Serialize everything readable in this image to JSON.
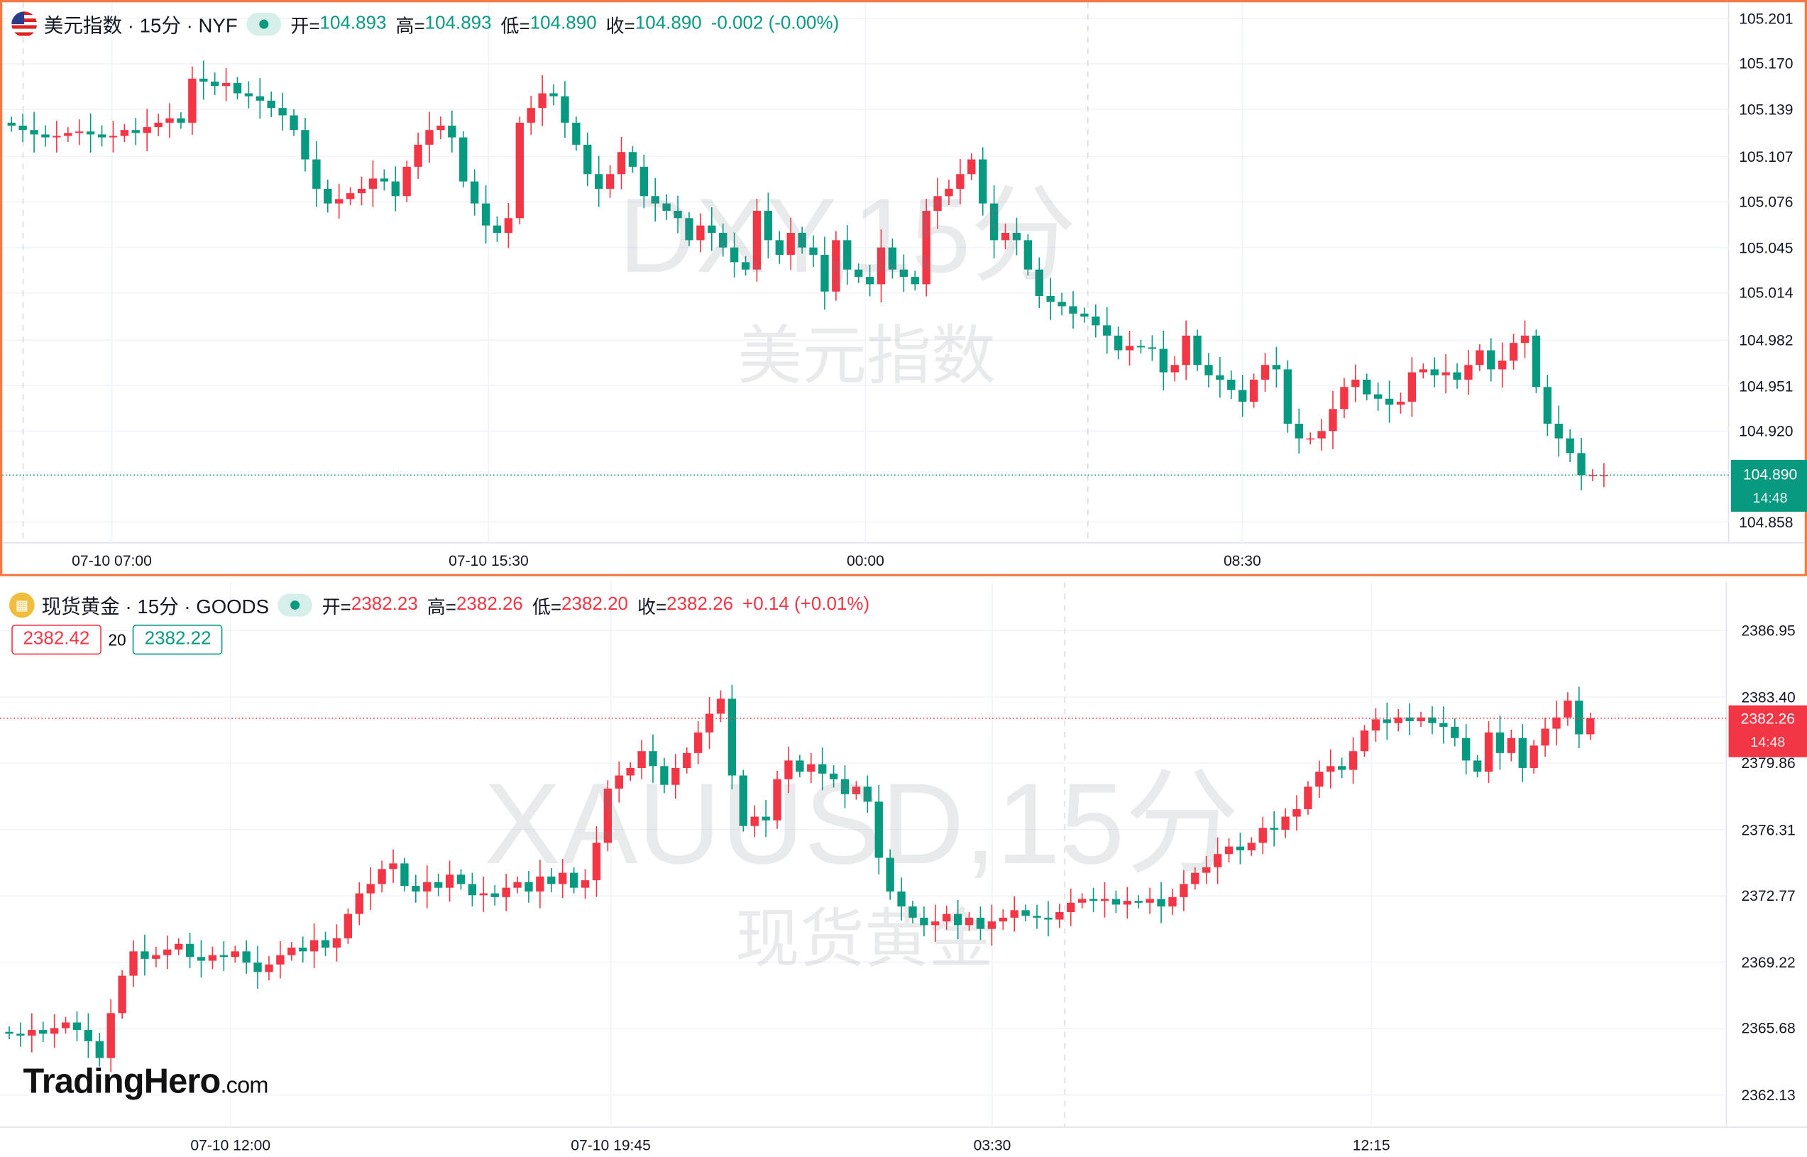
{
  "colors": {
    "up": "#f23645",
    "down": "#089981",
    "grid": "#f0f3fa",
    "accent": "#f47a45"
  },
  "top": {
    "icon": "us-flag-icon",
    "name": "美元指数 · 15分 · NYF",
    "o_label": "开=",
    "o": "104.893",
    "h_label": "高=",
    "h": "104.893",
    "l_label": "低=",
    "l": "104.890",
    "c_label": "收=",
    "c": "104.890",
    "change": "-0.002 (-0.00%)",
    "watermark": "DXY,15分",
    "watermark_sub": "美元指数",
    "current_price": "104.890",
    "countdown": "14:48"
  },
  "bottom": {
    "icon": "gold-icon",
    "name": "现货黄金 · 15分 · GOODS",
    "o_label": "开=",
    "o": "2382.23",
    "h_label": "高=",
    "h": "2382.26",
    "l_label": "低=",
    "l": "2382.20",
    "c_label": "收=",
    "c": "2382.26",
    "change": "+0.14 (+0.01%)",
    "bid": "2382.42",
    "spread": "20",
    "ask": "2382.22",
    "watermark": "XAUUSD,15分",
    "watermark_sub": "现货黄金",
    "current_price": "2382.26",
    "countdown": "14:48"
  },
  "logo": {
    "text": "TradingHero",
    ".com": ".com"
  },
  "chart_data": [
    {
      "type": "candlestick",
      "title": "美元指数 · 15分 · NYF",
      "y_ticks": [
        "105.201",
        "105.170",
        "105.139",
        "105.107",
        "105.076",
        "105.045",
        "105.014",
        "104.982",
        "104.951",
        "104.920",
        "104.858"
      ],
      "x_ticks": [
        "07-10 07:00",
        "07-10 15:30",
        "00:00",
        "08:30"
      ],
      "ylim": [
        104.858,
        105.201
      ],
      "grid": true,
      "closes": [
        105.128,
        105.125,
        105.122,
        105.12,
        105.121,
        105.123,
        105.124,
        105.122,
        105.12,
        105.121,
        105.125,
        105.123,
        105.127,
        105.13,
        105.133,
        105.13,
        105.16,
        105.158,
        105.155,
        105.157,
        105.15,
        105.148,
        105.145,
        105.14,
        105.135,
        105.125,
        105.105,
        105.085,
        105.075,
        105.078,
        105.082,
        105.085,
        105.092,
        105.09,
        105.08,
        105.1,
        105.115,
        105.125,
        105.128,
        105.12,
        105.09,
        105.075,
        105.06,
        105.055,
        105.065,
        105.13,
        105.14,
        105.15,
        105.148,
        105.13,
        105.115,
        105.095,
        105.085,
        105.095,
        105.11,
        105.1,
        105.08,
        105.075,
        105.07,
        105.065,
        105.05,
        105.06,
        105.055,
        105.045,
        105.035,
        105.03,
        105.07,
        105.05,
        105.04,
        105.055,
        105.045,
        105.04,
        105.015,
        105.05,
        105.03,
        105.025,
        105.02,
        105.045,
        105.03,
        105.025,
        105.02,
        105.07,
        105.08,
        105.085,
        105.095,
        105.105,
        105.075,
        105.05,
        105.055,
        105.05,
        105.03,
        105.012,
        105.008,
        105.005,
        105.0,
        104.998,
        104.992,
        104.985,
        104.975,
        104.978,
        104.977,
        104.976,
        104.96,
        104.965,
        104.985,
        104.965,
        104.958,
        104.955,
        104.948,
        104.94,
        104.955,
        104.965,
        104.962,
        104.925,
        104.915,
        104.915,
        104.92,
        104.935,
        104.95,
        104.955,
        104.945,
        104.942,
        104.938,
        104.94,
        104.96,
        104.962,
        104.958,
        104.96,
        104.955,
        104.965,
        104.975,
        104.962,
        104.968,
        104.98,
        104.985,
        104.95,
        104.925,
        104.915,
        104.905,
        104.89,
        104.89,
        104.89
      ]
    },
    {
      "type": "candlestick",
      "title": "现货黄金 · 15分 · GOODS",
      "y_ticks": [
        "2386.95",
        "2383.40",
        "2379.86",
        "2376.31",
        "2372.77",
        "2369.22",
        "2365.68",
        "2362.13"
      ],
      "x_ticks": [
        "07-10 12:00",
        "07-10 19:45",
        "03:30",
        "12:15"
      ],
      "ylim": [
        2362.13,
        2386.95
      ],
      "grid": true,
      "closes": [
        2365.4,
        2365.3,
        2365.6,
        2365.4,
        2365.7,
        2366.0,
        2365.6,
        2365.0,
        2364.1,
        2366.5,
        2368.5,
        2369.8,
        2369.4,
        2369.6,
        2369.9,
        2370.2,
        2369.5,
        2369.3,
        2369.6,
        2369.5,
        2369.8,
        2369.2,
        2368.7,
        2369.1,
        2369.6,
        2370.0,
        2369.8,
        2370.4,
        2370.0,
        2370.5,
        2371.8,
        2372.9,
        2373.4,
        2374.2,
        2374.5,
        2373.3,
        2373.0,
        2373.5,
        2373.2,
        2373.9,
        2373.4,
        2372.8,
        2372.9,
        2372.7,
        2373.2,
        2373.5,
        2373.0,
        2373.8,
        2373.4,
        2374.0,
        2373.2,
        2373.6,
        2375.6,
        2378.5,
        2379.2,
        2379.6,
        2380.5,
        2379.7,
        2378.7,
        2379.6,
        2380.4,
        2381.5,
        2382.5,
        2383.3,
        2379.2,
        2376.5,
        2377.0,
        2376.8,
        2379.0,
        2380.0,
        2379.4,
        2379.8,
        2379.3,
        2379.0,
        2378.2,
        2378.6,
        2377.8,
        2374.8,
        2373.0,
        2372.2,
        2371.6,
        2371.2,
        2371.4,
        2371.8,
        2371.2,
        2371.6,
        2371.0,
        2371.4,
        2371.6,
        2372.0,
        2371.7,
        2371.6,
        2371.5,
        2371.9,
        2372.4,
        2372.6,
        2372.5,
        2372.6,
        2372.3,
        2372.5,
        2372.4,
        2372.6,
        2372.2,
        2372.7,
        2373.4,
        2374.0,
        2374.3,
        2375.0,
        2375.4,
        2375.2,
        2375.6,
        2376.4,
        2376.3,
        2377.0,
        2377.4,
        2378.6,
        2379.4,
        2379.7,
        2379.5,
        2380.5,
        2381.6,
        2382.2,
        2382.0,
        2382.3,
        2382.1,
        2382.3,
        2382.0,
        2381.8,
        2381.2,
        2380.0,
        2379.4,
        2381.5,
        2380.4,
        2381.2,
        2379.6,
        2380.8,
        2381.7,
        2382.3,
        2383.2,
        2381.4,
        2382.26
      ]
    }
  ]
}
